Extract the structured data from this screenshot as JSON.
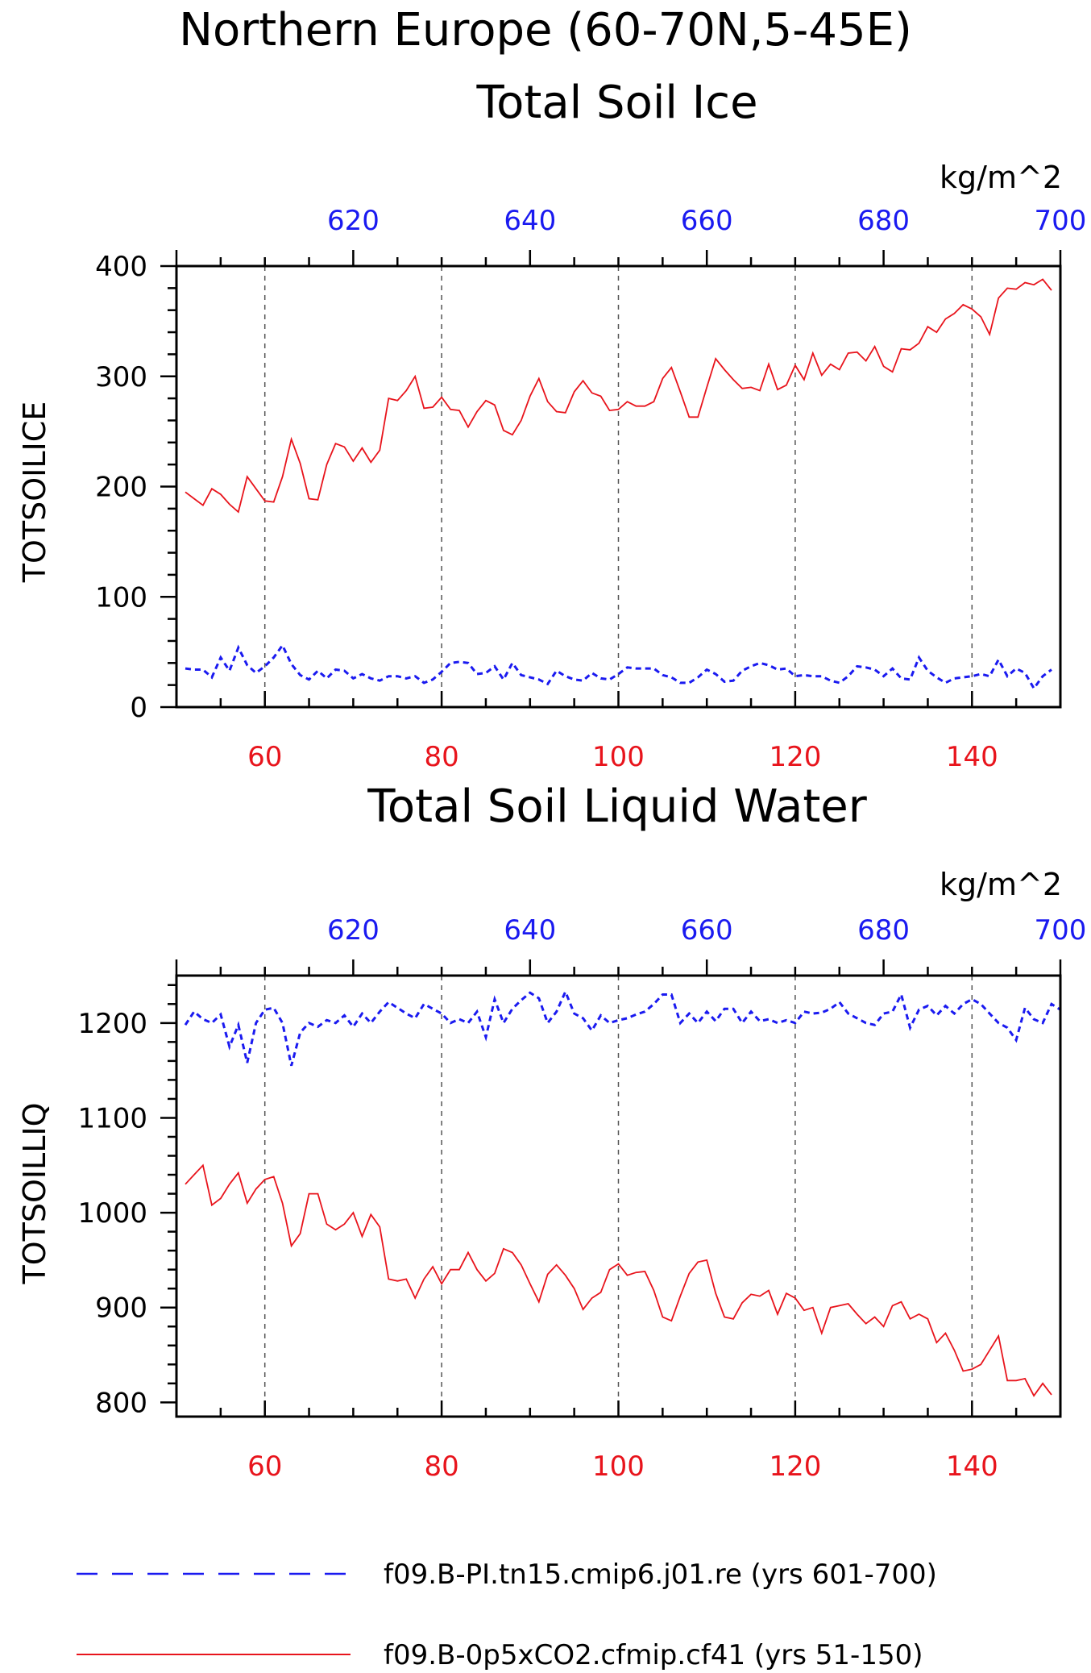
{
  "chart_data": {
    "title": "Northern Europe (60-70N,5-45E)",
    "legend": {
      "placement": "bottom",
      "entries": [
        {
          "label": "f09.B-PI.tn15.cmip6.j01.re (yrs 601-700)",
          "color": "#1a1af0",
          "style": "dashed"
        },
        {
          "label": "f09.B-0p5xCO2.cfmip.cf41 (yrs 51-150)",
          "color": "#e8141c",
          "style": "solid"
        }
      ]
    },
    "panels": [
      {
        "type": "line",
        "title": "Total Soil Ice",
        "ylabel": "TOTSOILICE",
        "units": "kg/m^2",
        "ylim": [
          0,
          400
        ],
        "yticks": [
          0,
          100,
          200,
          300,
          400
        ],
        "xlim_bottom": [
          50,
          150
        ],
        "xticks_bottom": [
          60,
          80,
          100,
          120,
          140
        ],
        "xlim_top": [
          600,
          700
        ],
        "xticks_top": [
          620,
          640,
          660,
          680,
          700
        ],
        "grid": "vertical dashed",
        "series": [
          {
            "color": "#e8141c",
            "style": "solid",
            "axis": "bottom",
            "x_start": 51,
            "values": [
              195,
              189,
              183,
              198,
              193,
              184,
              177,
              209,
              198,
              187,
              186,
              209,
              243,
              221,
              189,
              188,
              220,
              239,
              236,
              223,
              235,
              222,
              233,
              280,
              278,
              287,
              300,
              271,
              272,
              281,
              270,
              269,
              254,
              268,
              278,
              274,
              251,
              247,
              260,
              282,
              298,
              277,
              268,
              267,
              286,
              296,
              285,
              282,
              269,
              270,
              277,
              273,
              273,
              277,
              298,
              308,
              286,
              263,
              263,
              290,
              316,
              306,
              297,
              289,
              290,
              287,
              311,
              288,
              292,
              310,
              297,
              321,
              301,
              311,
              306,
              321,
              322,
              314,
              327,
              309,
              304,
              325,
              324,
              330,
              345,
              340,
              352,
              357,
              365,
              361,
              354,
              338,
              371,
              380,
              379,
              385,
              383,
              388,
              378
            ]
          },
          {
            "color": "#1a1af0",
            "style": "dashed",
            "axis": "top",
            "x_start": 601,
            "values": [
              35,
              34,
              34,
              27,
              45,
              33,
              54,
              38,
              31,
              37,
              45,
              56,
              39,
              29,
              25,
              33,
              26,
              34,
              33,
              26,
              30,
              26,
              24,
              28,
              28,
              26,
              28,
              22,
              25,
              32,
              40,
              41,
              40,
              30,
              31,
              37,
              25,
              40,
              29,
              27,
              25,
              21,
              33,
              28,
              25,
              24,
              31,
              26,
              25,
              30,
              36,
              35,
              35,
              35,
              29,
              27,
              22,
              22,
              27,
              34,
              30,
              23,
              24,
              33,
              37,
              40,
              38,
              34,
              35,
              28,
              29,
              28,
              28,
              24,
              22,
              28,
              37,
              36,
              34,
              28,
              35,
              26,
              25,
              45,
              33,
              27,
              22,
              26,
              27,
              28,
              30,
              28,
              43,
              28,
              35,
              31,
              17,
              28,
              34
            ]
          }
        ]
      },
      {
        "type": "line",
        "title": "Total Soil Liquid Water",
        "ylabel": "TOTSOILLIQ",
        "units": "kg/m^2",
        "ylim": [
          785,
          1250
        ],
        "yticks": [
          800,
          900,
          1000,
          1100,
          1200
        ],
        "xlim_bottom": [
          50,
          150
        ],
        "xticks_bottom": [
          60,
          80,
          100,
          120,
          140
        ],
        "xlim_top": [
          600,
          700
        ],
        "xticks_top": [
          620,
          640,
          660,
          680,
          700
        ],
        "grid": "vertical dashed",
        "series": [
          {
            "color": "#e8141c",
            "style": "solid",
            "axis": "bottom",
            "x_start": 51,
            "values": [
              1030,
              1040,
              1050,
              1008,
              1015,
              1030,
              1042,
              1010,
              1025,
              1035,
              1038,
              1010,
              965,
              978,
              1020,
              1020,
              988,
              982,
              988,
              1000,
              975,
              998,
              985,
              930,
              928,
              930,
              910,
              930,
              943,
              925,
              940,
              940,
              958,
              940,
              928,
              936,
              962,
              958,
              945,
              925,
              906,
              935,
              945,
              934,
              920,
              898,
              910,
              916,
              940,
              946,
              934,
              937,
              938,
              918,
              890,
              886,
              912,
              936,
              948,
              950,
              915,
              890,
              888,
              905,
              914,
              912,
              918,
              893,
              915,
              910,
              897,
              900,
              873,
              900,
              902,
              904,
              893,
              883,
              890,
              880,
              902,
              906,
              888,
              893,
              888,
              863,
              873,
              855,
              833,
              835,
              840,
              855,
              870,
              823,
              823,
              825,
              807,
              820,
              808
            ]
          },
          {
            "color": "#1a1af0",
            "style": "dashed",
            "axis": "top",
            "x_start": 601,
            "values": [
              1198,
              1212,
              1204,
              1200,
              1209,
              1175,
              1198,
              1158,
              1200,
              1214,
              1216,
              1200,
              1155,
              1190,
              1200,
              1196,
              1203,
              1200,
              1208,
              1196,
              1210,
              1200,
              1212,
              1222,
              1216,
              1210,
              1205,
              1220,
              1215,
              1210,
              1200,
              1204,
              1200,
              1212,
              1185,
              1225,
              1200,
              1215,
              1224,
              1232,
              1226,
              1200,
              1212,
              1233,
              1210,
              1205,
              1192,
              1208,
              1200,
              1203,
              1205,
              1209,
              1212,
              1220,
              1230,
              1230,
              1200,
              1210,
              1200,
              1212,
              1202,
              1215,
              1215,
              1200,
              1212,
              1202,
              1204,
              1200,
              1203,
              1200,
              1212,
              1210,
              1211,
              1215,
              1222,
              1210,
              1205,
              1200,
              1198,
              1210,
              1212,
              1230,
              1195,
              1214,
              1218,
              1208,
              1218,
              1210,
              1220,
              1225,
              1220,
              1210,
              1200,
              1195,
              1182,
              1216,
              1204,
              1200,
              1220,
              1214
            ]
          }
        ]
      }
    ]
  }
}
